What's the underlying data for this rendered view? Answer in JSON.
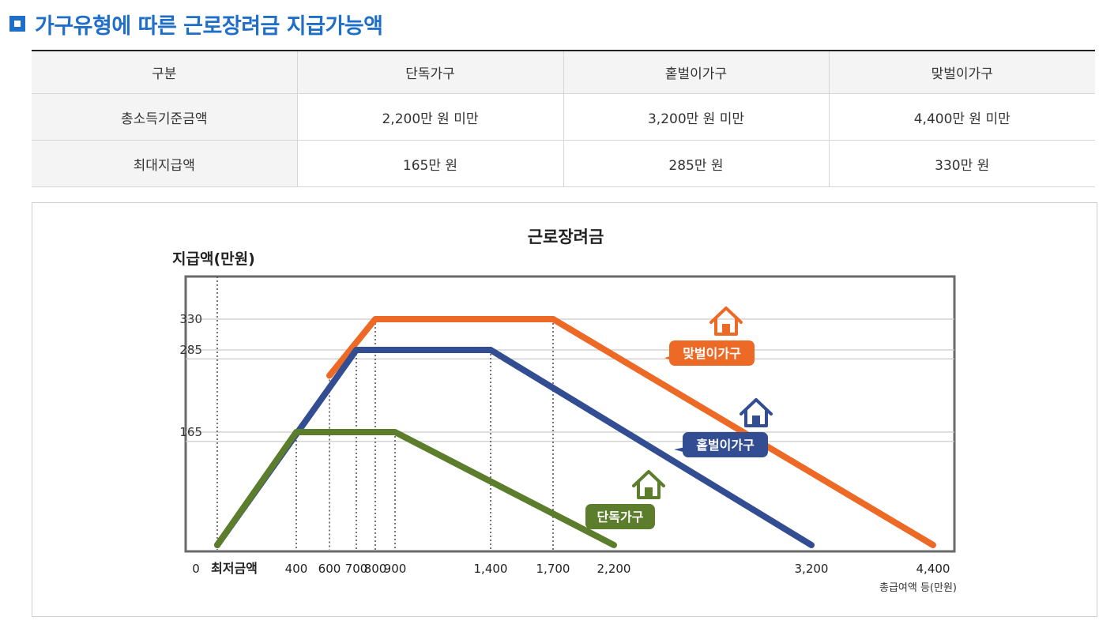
{
  "heading": {
    "title": "가구유형에 따른 근로장려금 지급가능액"
  },
  "table": {
    "headers": [
      "구분",
      "단독가구",
      "홑벌이가구",
      "맞벌이가구"
    ],
    "rows": [
      [
        "총소득기준금액",
        "2,200만 원 미만",
        "3,200만 원 미만",
        "4,400만 원 미만"
      ],
      [
        "최대지급액",
        "165만 원",
        "285만 원",
        "330만 원"
      ]
    ]
  },
  "chart_data": {
    "type": "line",
    "title": "근로장려금",
    "ylabel": "지급액(만원)",
    "xlabel": "총급여액 등(만원)",
    "x_tick_labels": [
      "0",
      "최저금액",
      "400",
      "600",
      "700",
      "800",
      "900",
      "1,400",
      "1,700",
      "2,200",
      "3,200",
      "4,400"
    ],
    "y_tick_labels": [
      "330",
      "285",
      "165"
    ],
    "y_ticks": [
      330,
      285,
      165
    ],
    "ylim": [
      0,
      370
    ],
    "grid": true,
    "series": [
      {
        "name": "맞벌이가구",
        "color": "#ec6a26",
        "x": [
          600,
          800,
          1700,
          4400
        ],
        "y": [
          247.5,
          330,
          330,
          0
        ]
      },
      {
        "name": "홑벌이가구",
        "color": "#334d92",
        "x": [
          0,
          700,
          1400,
          3200
        ],
        "y": [
          0,
          285,
          285,
          0
        ]
      },
      {
        "name": "단독가구",
        "color": "#5b7d2c",
        "x": [
          0,
          400,
          900,
          2200
        ],
        "y": [
          0,
          165,
          165,
          0
        ]
      }
    ]
  }
}
